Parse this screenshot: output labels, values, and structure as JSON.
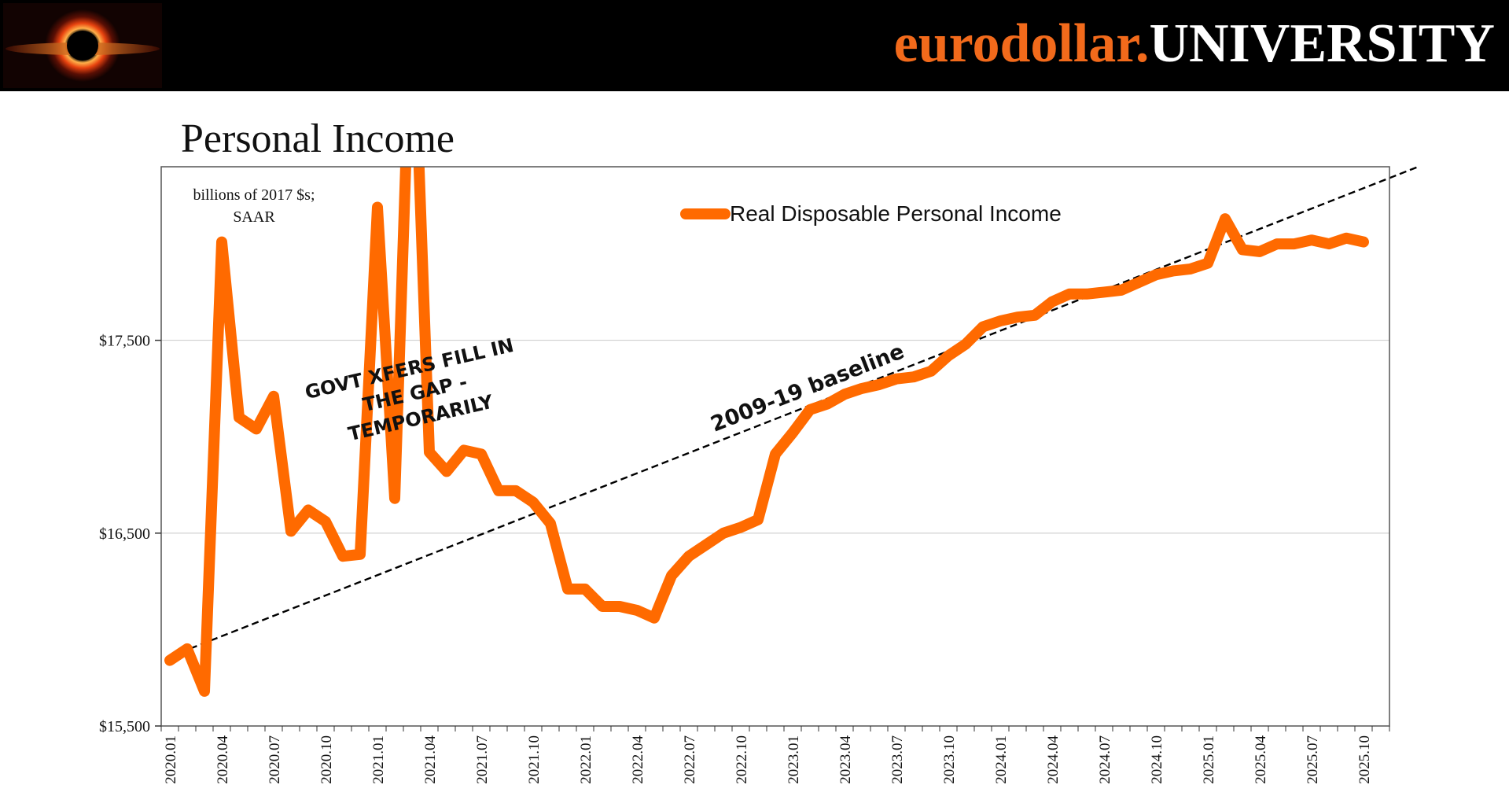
{
  "header": {
    "brand_part1": "eurodollar.",
    "brand_part2": "UNIVERSITY",
    "logo_icon": "black-hole-logo-icon",
    "brand_color": "#f26a1b"
  },
  "page_title": "Personal Income",
  "chart_data": {
    "type": "line",
    "unit_note_line1": "billions of 2017 $s;",
    "unit_note_line2": "SAAR",
    "ylim": [
      15500,
      18400
    ],
    "yticks": [
      15500,
      16500,
      17500
    ],
    "ytick_labels": [
      "$15,500",
      "$16,500",
      "$17,500"
    ],
    "x_tick_labels": [
      "2020.01",
      "2020.04",
      "2020.07",
      "2020.10",
      "2021.01",
      "2021.04",
      "2021.07",
      "2021.10",
      "2022.01",
      "2022.04",
      "2022.07",
      "2022.10",
      "2023.01",
      "2023.04",
      "2023.07",
      "2023.10",
      "2024.01",
      "2024.04",
      "2024.07",
      "2024.10",
      "2025.01",
      "2025.04",
      "2025.07",
      "2025.10"
    ],
    "grid": "horizontal",
    "legend_position": "top-center",
    "series": [
      {
        "name": "Real Disposable Personal Income",
        "color": "#ff6a00",
        "start": "2020.01",
        "values": [
          15840,
          15900,
          15680,
          18010,
          17100,
          17040,
          17210,
          16510,
          16620,
          16560,
          16380,
          16390,
          18190,
          16680,
          19400,
          16920,
          16820,
          16930,
          16910,
          16720,
          16720,
          16660,
          16550,
          16210,
          16210,
          16120,
          16120,
          16100,
          16060,
          16280,
          16380,
          16440,
          16500,
          16530,
          16570,
          16910,
          17020,
          17140,
          17170,
          17220,
          17250,
          17270,
          17300,
          17310,
          17340,
          17420,
          17480,
          17570,
          17600,
          17620,
          17630,
          17700,
          17740,
          17740,
          17750,
          17760,
          17800,
          17840,
          17860,
          17870,
          17900,
          18130,
          17970,
          17960,
          18000,
          18000,
          18020,
          18000,
          18030,
          18010
        ]
      }
    ],
    "baseline": {
      "label": "2009-19 baseline",
      "start": "2020.01",
      "y_start": 15860,
      "slope_per_month": 35.2,
      "color": "#000000"
    },
    "annotations": [
      {
        "lines": [
          "GOVT XFERS FILL IN",
          "THE GAP -",
          "TEMPORARILY"
        ]
      }
    ]
  }
}
